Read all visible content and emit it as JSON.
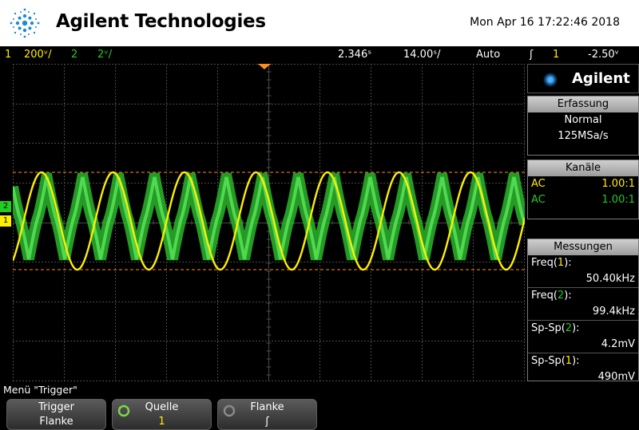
{
  "header": {
    "brand": "Agilent Technologies",
    "datetime": "Mon Apr 16 17:22:46 2018"
  },
  "status": {
    "ch1_num": "1",
    "ch1_scale": "200ᵛ/",
    "ch2_num": "2",
    "ch2_scale": "2ᵛ/",
    "time_offset": "2.346ˢ",
    "time_scale": "14.00ˢ/",
    "trigger_mode": "Auto",
    "trigger_slope": "ʃ",
    "trigger_source": "1",
    "trigger_level": "-2.50ᵛ"
  },
  "screen": {
    "ground_marker_ch2": "2",
    "ground_marker_ch1": "1"
  },
  "panel": {
    "logo": "Agilent",
    "acquisition": {
      "title": "Erfassung",
      "mode": "Normal",
      "rate": "125MSa/s"
    },
    "channels": {
      "title": "Kanäle",
      "ch1": {
        "coupling": "AC",
        "probe": "1.00:1"
      },
      "ch2": {
        "coupling": "AC",
        "probe": "1.00:1"
      }
    },
    "measurements": {
      "title": "Messungen",
      "items": [
        {
          "label_prefix": "Freq(",
          "ch": "1",
          "label_suffix": "):",
          "value": "50.40kHz",
          "color": "#ffee00"
        },
        {
          "label_prefix": "Freq(",
          "ch": "2",
          "label_suffix": "):",
          "value": "99.4kHz",
          "color": "#22cc22"
        },
        {
          "label_prefix": "Sp-Sp(",
          "ch": "2",
          "label_suffix": "):",
          "value": "4.2mV",
          "color": "#22cc22"
        },
        {
          "label_prefix": "Sp-Sp(",
          "ch": "1",
          "label_suffix": "):",
          "value": "490mV",
          "color": "#ffee00"
        }
      ]
    }
  },
  "softkeys": {
    "title": "Menü \"Trigger\"",
    "keys": [
      {
        "label": "Trigger",
        "value": "Flanke"
      },
      {
        "label": "Quelle",
        "value": "1"
      },
      {
        "label": "Flanke",
        "value": "ʃ"
      }
    ]
  },
  "colors": {
    "ch1": "#ffee00",
    "ch2": "#22cc22",
    "grid": "#4a4a4a",
    "trigger_marker": "#ff8c1a"
  }
}
